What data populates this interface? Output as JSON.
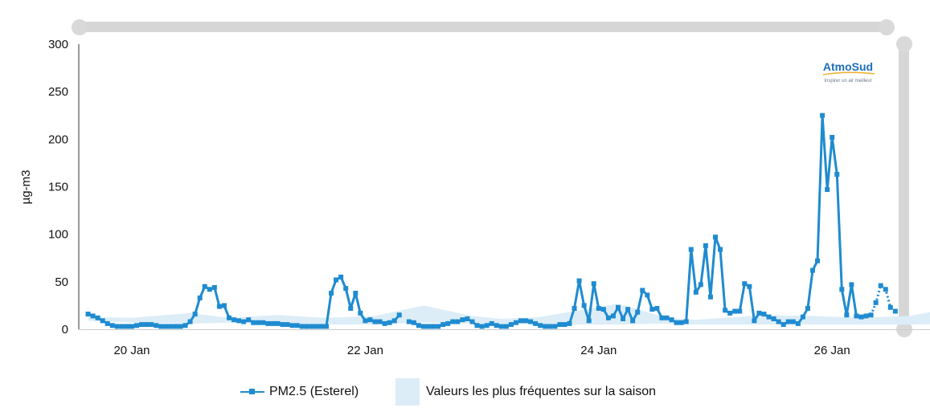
{
  "chart_data": {
    "type": "line",
    "ylabel": "µg-m3",
    "ylim": [
      0,
      300
    ],
    "yticks": [
      "0",
      "50",
      "100",
      "150",
      "200",
      "250",
      "300"
    ],
    "xticks": [
      "20 Jan",
      "22 Jan",
      "24 Jan",
      "26 Jan"
    ],
    "x_unit": "hours from 20 Jan 00:00",
    "grid": false,
    "legend_position": "bottom-center",
    "series": [
      {
        "name": "PM2.5 (Esterel)",
        "color": "#1f8bd0",
        "x_start": -9,
        "x_step": 1,
        "values": [
          16,
          14,
          12,
          9,
          6,
          4,
          3,
          3,
          3,
          3,
          4,
          5,
          5,
          5,
          4,
          3,
          3,
          3,
          3,
          3,
          4,
          8,
          16,
          33,
          45,
          42,
          44,
          24,
          25,
          12,
          10,
          9,
          8,
          10,
          7,
          7,
          7,
          6,
          6,
          6,
          5,
          5,
          4,
          4,
          3,
          3,
          3,
          3,
          3,
          3,
          38,
          52,
          55,
          43,
          22,
          38,
          17,
          9,
          10,
          8,
          8,
          6,
          7,
          9,
          15,
          null,
          8,
          7,
          4,
          3,
          3,
          3,
          3,
          5,
          6,
          8,
          8,
          10,
          11,
          8,
          4,
          3,
          4,
          6,
          4,
          3,
          3,
          5,
          7,
          9,
          9,
          8,
          6,
          4,
          3,
          3,
          3,
          5,
          5,
          6,
          22,
          51,
          25,
          9,
          48,
          22,
          21,
          12,
          14,
          23,
          11,
          21,
          9,
          18,
          41,
          36,
          21,
          22,
          12,
          12,
          10,
          7,
          7,
          8,
          84,
          39,
          47,
          88,
          34,
          97,
          84,
          20,
          17,
          19,
          19,
          48,
          45,
          9,
          17,
          16,
          13,
          11,
          8,
          5,
          8,
          8,
          6,
          13,
          22,
          62,
          72,
          225,
          147,
          202,
          163,
          42,
          15,
          47,
          14,
          13,
          14,
          15
        ],
        "dotted_values": [
          15,
          28,
          46,
          42,
          23,
          19
        ]
      },
      {
        "name": "Valeurs les plus fréquentes sur la saison",
        "color": "#dcedf8",
        "type": "band",
        "x": [
          -9,
          0,
          12,
          20,
          30,
          40,
          50,
          60,
          70,
          76,
          84,
          100,
          110,
          116,
          130,
          140,
          150,
          160,
          172,
          180,
          192,
          200,
          214,
          226,
          232
        ],
        "lower": [
          9,
          7,
          6,
          7,
          6,
          5,
          5,
          7,
          6,
          6,
          5,
          5,
          6,
          5,
          5,
          5,
          5,
          5,
          6,
          5,
          5,
          5,
          5,
          5,
          5
        ],
        "upper": [
          13,
          12,
          17,
          12,
          15,
          12,
          14,
          25,
          14,
          11,
          13,
          27,
          12,
          10,
          15,
          14,
          12,
          14,
          26,
          14,
          13,
          16,
          25,
          12,
          8
        ]
      }
    ],
    "logo": {
      "name": "AtmoSud",
      "tagline": "Inspirer un air meilleur"
    }
  }
}
